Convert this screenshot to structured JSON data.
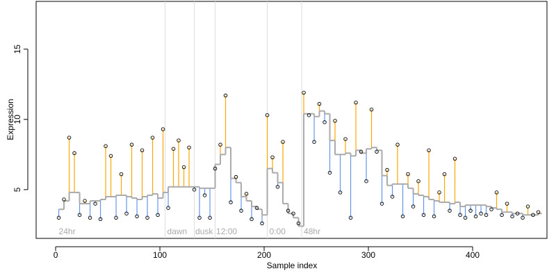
{
  "chart_data": {
    "type": "scatter",
    "xlabel": "Sample index",
    "ylabel": "Expression",
    "x": [
      3,
      8,
      13,
      18,
      23,
      28,
      33,
      38,
      43,
      48,
      53,
      58,
      63,
      68,
      73,
      78,
      83,
      88,
      93,
      98,
      103,
      108,
      113,
      118,
      123,
      128,
      133,
      138,
      143,
      148,
      153,
      158,
      163,
      168,
      173,
      178,
      183,
      188,
      193,
      198,
      203,
      208,
      213,
      218,
      223,
      228,
      233,
      238,
      243,
      248,
      253,
      258,
      263,
      268,
      273,
      278,
      283,
      288,
      293,
      298,
      303,
      308,
      313,
      318,
      323,
      328,
      333,
      338,
      343,
      348,
      353,
      358,
      363,
      368,
      373,
      378,
      383,
      388,
      393,
      398,
      403,
      408,
      413,
      418,
      423,
      428,
      433,
      438,
      443,
      448,
      453,
      458,
      463
    ],
    "values": [
      3.0,
      4.3,
      8.7,
      7.6,
      3.2,
      4.2,
      3.0,
      4.0,
      2.9,
      8.1,
      7.4,
      3.0,
      6.1,
      3.3,
      8.2,
      3.1,
      7.8,
      3.0,
      8.7,
      3.2,
      9.3,
      3.7,
      7.9,
      8.5,
      6.6,
      8.0,
      5.0,
      3.0,
      4.6,
      3.0,
      6.5,
      8.2,
      11.7,
      4.1,
      5.9,
      3.5,
      4.7,
      2.9,
      3.7,
      2.6,
      10.3,
      7.3,
      5.2,
      8.4,
      3.5,
      3.3,
      2.6,
      11.9,
      10.3,
      8.4,
      11.1,
      9.8,
      6.2,
      9.9,
      4.8,
      8.6,
      3.0,
      11.2,
      7.7,
      5.6,
      10.7,
      7.7,
      4.0,
      6.4,
      4.5,
      8.2,
      3.1,
      6.1,
      3.8,
      5.6,
      3.2,
      7.8,
      3.1,
      4.8,
      6.1,
      3.5,
      7.2,
      3.2,
      3.0,
      3.5,
      3.1,
      3.3,
      3.2,
      3.6,
      4.8,
      3.2,
      4.0,
      3.1,
      3.3,
      3.0,
      3.8,
      3.2,
      3.4
    ],
    "baseline": [
      3.6,
      4.2,
      4.8,
      4.8,
      4.0,
      4.0,
      4.2,
      4.2,
      4.3,
      4.5,
      4.5,
      4.6,
      4.6,
      4.5,
      4.4,
      4.3,
      4.5,
      4.6,
      4.7,
      4.4,
      4.8,
      5.2,
      5.2,
      5.2,
      5.2,
      5.2,
      5.2,
      5.1,
      5.1,
      5.1,
      6.8,
      7.5,
      8.0,
      5.8,
      5.5,
      4.5,
      4.2,
      3.8,
      3.6,
      3.2,
      6.5,
      6.2,
      5.5,
      4.0,
      3.3,
      3.0,
      2.4,
      10.4,
      10.4,
      10.2,
      10.6,
      10.4,
      8.5,
      7.5,
      7.5,
      7.6,
      7.4,
      7.8,
      7.6,
      7.9,
      8.0,
      7.8,
      6.0,
      5.3,
      5.4,
      5.4,
      5.4,
      5.1,
      4.7,
      4.6,
      4.5,
      4.3,
      4.2,
      4.1,
      4.1,
      4.0,
      4.1,
      3.8,
      3.9,
      3.9,
      3.9,
      3.9,
      3.8,
      3.7,
      3.6,
      3.4,
      3.4,
      3.3,
      3.3,
      3.2,
      3.2,
      3.2,
      3.3
    ],
    "above_color": "#ffa500",
    "below_color": "#6495ed",
    "baseline_color": "#aaaaaa",
    "vlines": [
      105,
      133,
      153,
      203,
      236
    ],
    "annotations": [
      {
        "text": "24hr",
        "x": 3
      },
      {
        "text": "dawn",
        "x": 107
      },
      {
        "text": "dusk",
        "x": 134
      },
      {
        "text": "12:00",
        "x": 154
      },
      {
        "text": "0:00",
        "x": 205
      },
      {
        "text": "48hr",
        "x": 238
      }
    ],
    "xlim": [
      -18.7,
      471.3
    ],
    "ylim": [
      1.53,
      18.4
    ],
    "xticks": [
      0,
      100,
      200,
      300,
      400
    ],
    "yticks": [
      5,
      10,
      15
    ]
  }
}
